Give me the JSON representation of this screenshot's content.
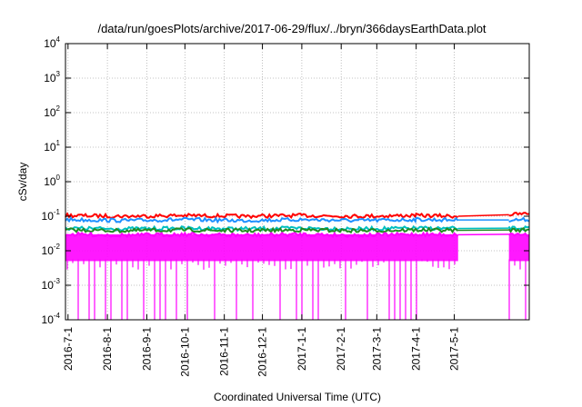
{
  "chart_data": {
    "type": "line",
    "title": "/data/run/goesPlots/archive/2017-06-29/flux/../bryn/366daysEarthData.plot",
    "xlabel": "Coordinated Universal Time (UTC)",
    "ylabel": "cSv/day",
    "yscale": "log",
    "ylim": [
      0.0001,
      10000
    ],
    "xlim": [
      "2016-06-29",
      "2017-06-29"
    ],
    "y_ticks": [
      {
        "base": "10",
        "exp": "-4",
        "value": 0.0001
      },
      {
        "base": "10",
        "exp": "-3",
        "value": 0.001
      },
      {
        "base": "10",
        "exp": "-2",
        "value": 0.01
      },
      {
        "base": "10",
        "exp": "-1",
        "value": 0.1
      },
      {
        "base": "10",
        "exp": "0",
        "value": 1
      },
      {
        "base": "10",
        "exp": "1",
        "value": 10
      },
      {
        "base": "10",
        "exp": "2",
        "value": 100
      },
      {
        "base": "10",
        "exp": "3",
        "value": 1000
      },
      {
        "base": "10",
        "exp": "4",
        "value": 10000
      }
    ],
    "x_ticks": [
      "2016-7-1",
      "2016-8-1",
      "2016-9-1",
      "2016-10-1",
      "2016-11-1",
      "2016-12-1",
      "2017-1-1",
      "2017-2-1",
      "2017-3-1",
      "2017-4-1",
      "2017-5-1"
    ],
    "grid": true,
    "data_gap": [
      "2017-05-04",
      "2017-06-13"
    ],
    "series": [
      {
        "color": "#ff0000",
        "x": [
          "2016-06-29",
          "2016-08-15",
          "2016-10-01",
          "2016-11-15",
          "2017-01-01",
          "2017-02-15",
          "2017-04-01",
          "2017-05-04",
          "2017-06-13",
          "2017-06-29"
        ],
        "y": [
          0.105,
          0.1,
          0.105,
          0.1,
          0.105,
          0.1,
          0.105,
          0.1,
          0.11,
          0.12
        ]
      },
      {
        "color": "#1e90ff",
        "x": [
          "2016-06-29",
          "2016-08-15",
          "2016-10-01",
          "2016-11-15",
          "2017-01-01",
          "2017-02-15",
          "2017-04-01",
          "2017-05-04",
          "2017-06-13",
          "2017-06-29"
        ],
        "y": [
          0.08,
          0.075,
          0.08,
          0.075,
          0.08,
          0.075,
          0.08,
          0.078,
          0.078,
          0.08
        ]
      },
      {
        "color": "#00bfbf",
        "x": [
          "2016-06-29",
          "2016-08-15",
          "2016-10-01",
          "2016-11-15",
          "2017-01-01",
          "2017-02-15",
          "2017-04-01",
          "2017-05-04",
          "2017-06-13",
          "2017-06-29"
        ],
        "y": [
          0.045,
          0.043,
          0.045,
          0.043,
          0.045,
          0.043,
          0.045,
          0.044,
          0.045,
          0.045
        ]
      },
      {
        "color": "#228b22",
        "x": [
          "2016-06-29",
          "2016-08-15",
          "2016-10-01",
          "2016-11-15",
          "2017-01-01",
          "2017-02-15",
          "2017-04-01",
          "2017-05-04",
          "2017-06-13",
          "2017-06-29"
        ],
        "y": [
          0.04,
          0.038,
          0.04,
          0.038,
          0.04,
          0.038,
          0.04,
          0.039,
          0.04,
          0.04
        ]
      },
      {
        "color": "#ff00ff",
        "x": [
          "2016-06-29",
          "2016-08-15",
          "2016-10-01",
          "2016-11-15",
          "2017-01-01",
          "2017-02-15",
          "2017-04-01",
          "2017-05-04",
          "2017-06-13",
          "2017-06-29"
        ],
        "y": [
          0.03,
          0.028,
          0.03,
          0.028,
          0.03,
          0.028,
          0.03,
          0.029,
          0.03,
          0.03
        ]
      }
    ],
    "magenta_floor": 0.005,
    "magenta_dips_to": 0.0001
  }
}
